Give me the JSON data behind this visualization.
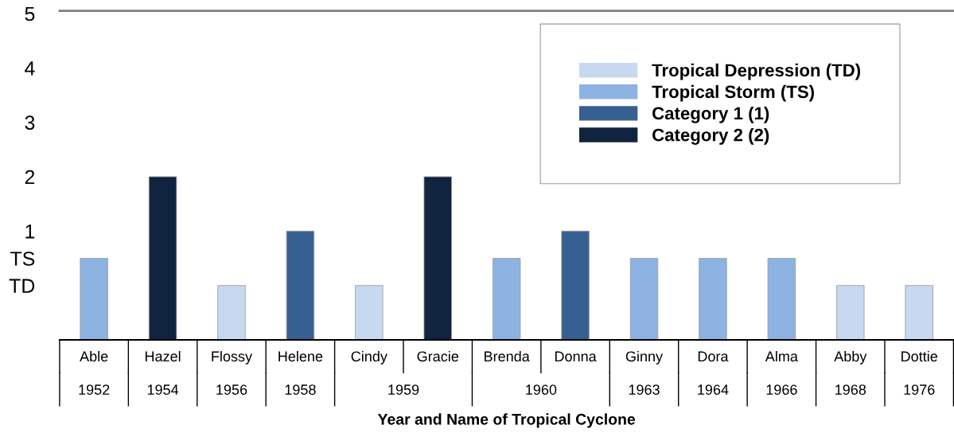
{
  "chart_data": {
    "type": "bar",
    "xlabel": "Year and Name of Tropical Cyclone",
    "categories": [
      "Able",
      "Hazel",
      "Flossy",
      "Helene",
      "Cindy",
      "Gracie",
      "Brenda",
      "Donna",
      "Ginny",
      "Dora",
      "Alma",
      "Abby",
      "Dottie"
    ],
    "series": [
      {
        "name": "Tropical Depression (TD)",
        "color": "#c6d9f0",
        "values": [
          null,
          null,
          1,
          null,
          1,
          null,
          null,
          null,
          null,
          null,
          null,
          1,
          1
        ],
        "base": [
          null,
          null,
          -1,
          null,
          -1,
          null,
          null,
          null,
          null,
          null,
          null,
          -1,
          -1
        ]
      },
      {
        "name": "Tropical Storm (TS)",
        "color": "#8db3e2",
        "values": [
          1.5,
          null,
          null,
          null,
          null,
          null,
          1.5,
          null,
          1.5,
          1.5,
          1.5,
          null,
          null
        ],
        "base": [
          -1,
          null,
          null,
          null,
          null,
          null,
          -1,
          null,
          -1,
          -1,
          -1,
          null,
          null
        ]
      },
      {
        "name": "Category 1 (1)",
        "color": "#366092",
        "values": [
          null,
          null,
          null,
          2,
          null,
          null,
          null,
          2,
          null,
          null,
          null,
          null,
          null
        ],
        "base": [
          null,
          null,
          null,
          -1,
          null,
          null,
          null,
          -1,
          null,
          null,
          null,
          null,
          null
        ]
      },
      {
        "name": "Category 2 (2)",
        "color": "#10243f",
        "values": [
          null,
          3,
          null,
          null,
          null,
          3,
          null,
          null,
          null,
          null,
          null,
          null,
          null
        ],
        "base": [
          null,
          -1,
          null,
          null,
          null,
          -1,
          null,
          null,
          null,
          null,
          null,
          null,
          null
        ]
      }
    ],
    "ylim": [
      -1,
      5.05
    ],
    "yticks": [
      {
        "value": 0,
        "label": "TD"
      },
      {
        "value": 0.5,
        "label": "TS"
      },
      1,
      2,
      3,
      4,
      5
    ],
    "annotations": [
      "1952",
      "1954",
      "1956",
      "1958",
      "1959",
      "1960",
      "1963",
      "1964",
      "1966",
      "1968",
      "1976"
    ],
    "legend": "top right",
    "grid": false
  }
}
